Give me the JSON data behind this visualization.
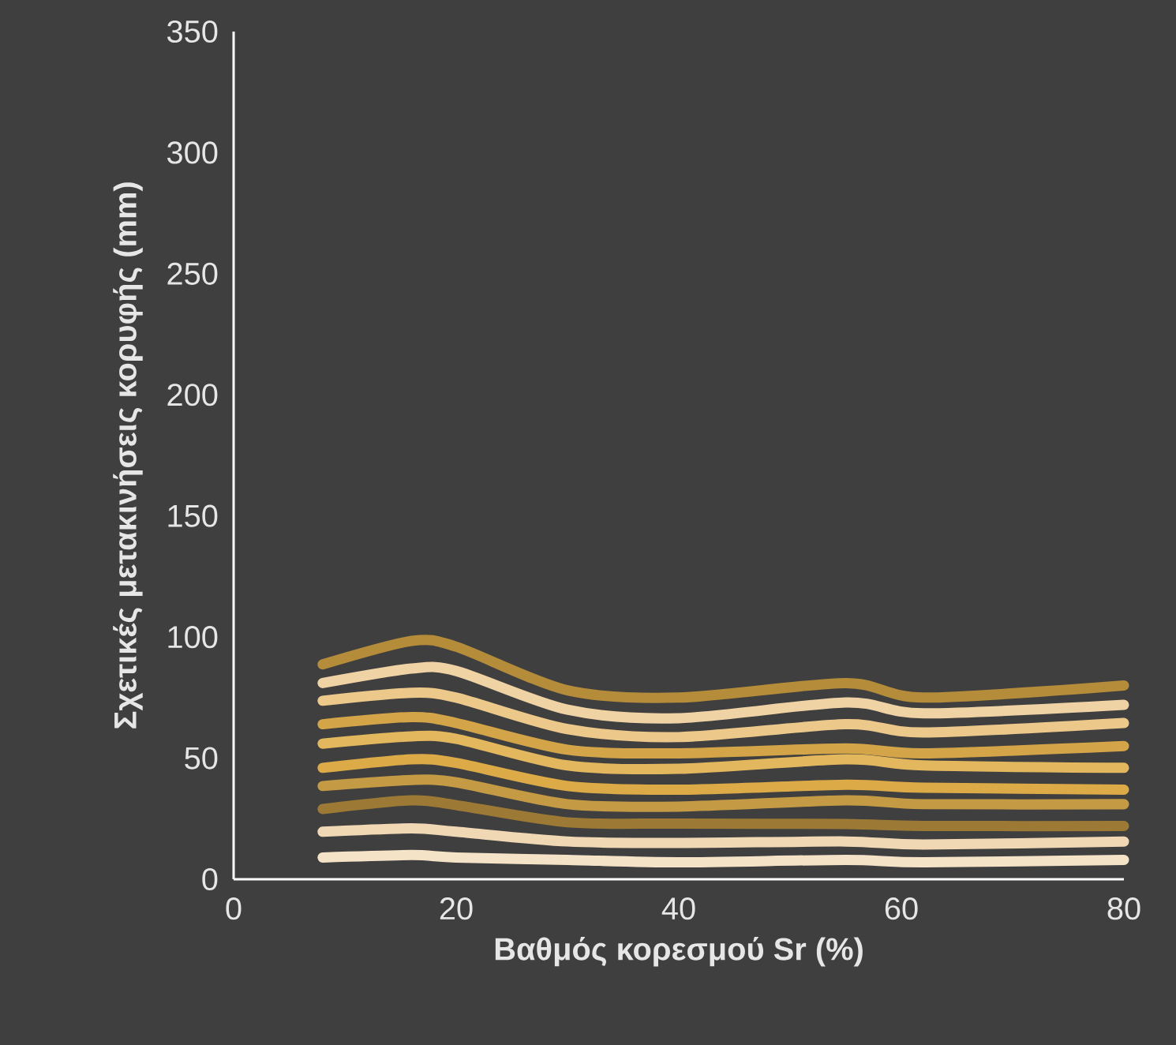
{
  "chart_data": {
    "type": "line",
    "xlabel": "Βαθμός κορεσμού Sr (%)",
    "ylabel": "Σχετικές μετακινήσεις κορυφής (mm)",
    "x": [
      8,
      16,
      20,
      30,
      40,
      55,
      62,
      80
    ],
    "xlim": [
      0,
      80
    ],
    "xticks": [
      0,
      20,
      40,
      60,
      80
    ],
    "ylim": [
      0,
      350
    ],
    "yticks": [
      0,
      50,
      100,
      150,
      200,
      250,
      300,
      350
    ],
    "marker": "none",
    "line_style": "solid",
    "series": [
      {
        "color": "#f5e3c8",
        "values": [
          9,
          10,
          9,
          8,
          7,
          8,
          7,
          8
        ]
      },
      {
        "color": "#f0d8b5",
        "values": [
          19.6,
          21,
          19.6,
          15.6,
          15,
          15.6,
          14.3,
          15.6
        ]
      },
      {
        "color": "#9c7a35",
        "values": [
          29,
          32.6,
          30.6,
          23.5,
          23,
          22.8,
          22,
          22
        ]
      },
      {
        "color": "#c49a45",
        "values": [
          38.5,
          41,
          40,
          31,
          30,
          32.6,
          31,
          31
        ]
      },
      {
        "color": "#dcab48",
        "values": [
          46,
          49.5,
          48,
          38.5,
          37,
          39,
          37.8,
          37
        ]
      },
      {
        "color": "#e2b75e",
        "values": [
          56,
          59,
          58,
          47,
          45.6,
          49.5,
          47,
          46
        ]
      },
      {
        "color": "#d4a548",
        "values": [
          64,
          67,
          64.5,
          53.5,
          52,
          54,
          52,
          55
        ]
      },
      {
        "color": "#ecc88a",
        "values": [
          73.7,
          77,
          75,
          62,
          58.7,
          64,
          60.6,
          64.5
        ]
      },
      {
        "color": "#f0d3a5",
        "values": [
          81,
          87,
          86,
          70,
          66.5,
          73,
          68.5,
          72
        ]
      },
      {
        "color": "#b58c3a",
        "values": [
          88.7,
          98.4,
          96,
          78,
          75,
          81,
          75,
          80
        ]
      }
    ]
  }
}
